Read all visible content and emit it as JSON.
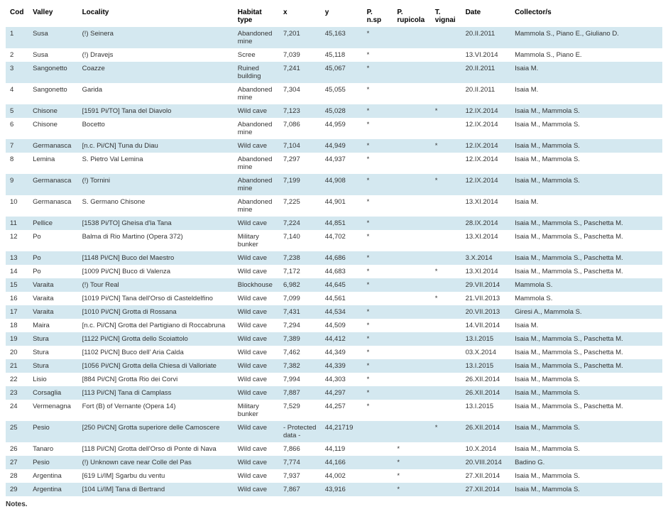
{
  "table": {
    "columns": [
      {
        "key": "cod",
        "label": "Cod",
        "class": "col-cod"
      },
      {
        "key": "valley",
        "label": "Valley",
        "class": "col-valley"
      },
      {
        "key": "locality",
        "label": "Locality",
        "class": "col-locality"
      },
      {
        "key": "habitat",
        "label": "Habitat type",
        "class": "col-habitat"
      },
      {
        "key": "x",
        "label": "x",
        "class": "col-x"
      },
      {
        "key": "y",
        "label": "y",
        "class": "col-y"
      },
      {
        "key": "pnsp",
        "label": "P. n.sp",
        "class": "col-pnsp"
      },
      {
        "key": "prup",
        "label": "P. rupicola",
        "class": "col-prup"
      },
      {
        "key": "tvig",
        "label": "T. vignai",
        "class": "col-tvig"
      },
      {
        "key": "date",
        "label": "Date",
        "class": "col-date"
      },
      {
        "key": "coll",
        "label": "Collector/s",
        "class": "col-coll"
      }
    ],
    "rows": [
      {
        "cod": "1",
        "valley": "Susa",
        "locality": "(!) Seinera",
        "habitat": "Abandoned mine",
        "x": "7,201",
        "y": "45,163",
        "pnsp": "*",
        "prup": "",
        "tvig": "",
        "date": "20.II.2011",
        "coll": "Mammola S., Piano E., Giuliano D."
      },
      {
        "cod": "2",
        "valley": "Susa",
        "locality": "(!) Dravejs",
        "habitat": "Scree",
        "x": "7,039",
        "y": "45,118",
        "pnsp": "*",
        "prup": "",
        "tvig": "",
        "date": "13.VI.2014",
        "coll": "Mammola S., Piano E."
      },
      {
        "cod": "3",
        "valley": "Sangonetto",
        "locality": "Coazze",
        "habitat": "Ruined building",
        "x": "7,241",
        "y": "45,067",
        "pnsp": "*",
        "prup": "",
        "tvig": "",
        "date": "20.II.2011",
        "coll": "Isaia M."
      },
      {
        "cod": "4",
        "valley": "Sangonetto",
        "locality": "Garida",
        "habitat": "Abandoned mine",
        "x": "7,304",
        "y": "45,055",
        "pnsp": "*",
        "prup": "",
        "tvig": "",
        "date": "20.II.2011",
        "coll": "Isaia M."
      },
      {
        "cod": "5",
        "valley": "Chisone",
        "locality": "[1591 Pi/TO] Tana del Diavolo",
        "habitat": "Wild cave",
        "x": "7,123",
        "y": "45,028",
        "pnsp": "*",
        "prup": "",
        "tvig": "*",
        "date": "12.IX.2014",
        "coll": "Isaia M., Mammola S."
      },
      {
        "cod": "6",
        "valley": "Chisone",
        "locality": "Bocetto",
        "habitat": "Abandoned mine",
        "x": "7,086",
        "y": "44,959",
        "pnsp": "*",
        "prup": "",
        "tvig": "",
        "date": "12.IX.2014",
        "coll": "Isaia M., Mammola S."
      },
      {
        "cod": "7",
        "valley": "Germanasca",
        "locality": "[n.c. Pi/CN] Tuna du Diau",
        "habitat": "Wild cave",
        "x": "7,104",
        "y": "44,949",
        "pnsp": "*",
        "prup": "",
        "tvig": "*",
        "date": "12.IX.2014",
        "coll": "Isaia M., Mammola S."
      },
      {
        "cod": "8",
        "valley": "Lemina",
        "locality": "S. Pietro Val Lemina",
        "habitat": "Abandoned mine",
        "x": "7,297",
        "y": "44,937",
        "pnsp": "*",
        "prup": "",
        "tvig": "",
        "date": "12.IX.2014",
        "coll": "Isaia M., Mammola S."
      },
      {
        "cod": "9",
        "valley": "Germanasca",
        "locality": "(!) Tornini",
        "habitat": "Abandoned mine",
        "x": "7,199",
        "y": "44,908",
        "pnsp": "*",
        "prup": "",
        "tvig": "*",
        "date": "12.IX.2014",
        "coll": "Isaia M., Mammola S."
      },
      {
        "cod": "10",
        "valley": "Germanasca",
        "locality": "S. Germano Chisone",
        "habitat": "Abandoned mine",
        "x": "7,225",
        "y": "44,901",
        "pnsp": "*",
        "prup": "",
        "tvig": "",
        "date": "13.XI.2014",
        "coll": "Isaia M."
      },
      {
        "cod": "11",
        "valley": "Pellice",
        "locality": "[1538 Pi/TO] Gheisa d'la Tana",
        "habitat": "Wild cave",
        "x": "7,224",
        "y": "44,851",
        "pnsp": "*",
        "prup": "",
        "tvig": "",
        "date": "28.IX.2014",
        "coll": "Isaia M., Mammola S., Paschetta M."
      },
      {
        "cod": "12",
        "valley": "Po",
        "locality": "Balma di Rio Martino (Opera 372)",
        "habitat": "Military bunker",
        "x": "7,140",
        "y": "44,702",
        "pnsp": "*",
        "prup": "",
        "tvig": "",
        "date": "13.XI.2014",
        "coll": "Isaia M., Mammola S., Paschetta M."
      },
      {
        "cod": "13",
        "valley": "Po",
        "locality": "[1148 Pi/CN] Buco del Maestro",
        "habitat": "Wild cave",
        "x": "7,238",
        "y": "44,686",
        "pnsp": "*",
        "prup": "",
        "tvig": "",
        "date": "3.X.2014",
        "coll": "Isaia M., Mammola S., Paschetta M."
      },
      {
        "cod": "14",
        "valley": "Po",
        "locality": "[1009 Pi/CN] Buco di Valenza",
        "habitat": "Wild cave",
        "x": "7,172",
        "y": "44,683",
        "pnsp": "*",
        "prup": "",
        "tvig": "*",
        "date": "13.XI.2014",
        "coll": "Isaia M., Mammola S., Paschetta M."
      },
      {
        "cod": "15",
        "valley": "Varaita",
        "locality": "(!) Tour Real",
        "habitat": "Blockhouse",
        "x": "6,982",
        "y": "44,645",
        "pnsp": "*",
        "prup": "",
        "tvig": "",
        "date": "29.VII.2014",
        "coll": "Mammola S."
      },
      {
        "cod": "16",
        "valley": "Varaita",
        "locality": "[1019 Pi/CN] Tana dell'Orso di Casteldelfino",
        "habitat": "Wild cave",
        "x": "7,099",
        "y": "44,561",
        "pnsp": "",
        "prup": "",
        "tvig": "*",
        "date": "21.VII.2013",
        "coll": "Mammola S."
      },
      {
        "cod": "17",
        "valley": "Varaita",
        "locality": "[1010 Pi/CN] Grotta di Rossana",
        "habitat": "Wild cave",
        "x": "7,431",
        "y": "44,534",
        "pnsp": "*",
        "prup": "",
        "tvig": "",
        "date": "20.VII.2013",
        "coll": "Giresi A., Mammola S."
      },
      {
        "cod": "18",
        "valley": "Maira",
        "locality": "[n.c. Pi/CN] Grotta del Partigiano di Roccabruna",
        "habitat": "Wild cave",
        "x": "7,294",
        "y": "44,509",
        "pnsp": "*",
        "prup": "",
        "tvig": "",
        "date": "14.VII.2014",
        "coll": "Isaia M."
      },
      {
        "cod": "19",
        "valley": "Stura",
        "locality": "[1122 Pi/CN] Grotta dello Scoiattolo",
        "habitat": "Wild cave",
        "x": "7,389",
        "y": "44,412",
        "pnsp": "*",
        "prup": "",
        "tvig": "",
        "date": "13.I.2015",
        "coll": "Isaia M., Mammola S., Paschetta M."
      },
      {
        "cod": "20",
        "valley": "Stura",
        "locality": "[1102 Pi/CN] Buco dell' Aria Calda",
        "habitat": "Wild cave",
        "x": "7,462",
        "y": "44,349",
        "pnsp": "*",
        "prup": "",
        "tvig": "",
        "date": "03.X.2014",
        "coll": "Isaia M., Mammola S., Paschetta M."
      },
      {
        "cod": "21",
        "valley": "Stura",
        "locality": "[1056 Pi/CN] Grotta della Chiesa di Valloriate",
        "habitat": "Wild cave",
        "x": "7,382",
        "y": "44,339",
        "pnsp": "*",
        "prup": "",
        "tvig": "",
        "date": "13.I.2015",
        "coll": "Isaia M., Mammola S., Paschetta M."
      },
      {
        "cod": "22",
        "valley": "Lisio",
        "locality": "[884 Pi/CN] Grotta Rio dei Corvi",
        "habitat": "Wild cave",
        "x": "7,994",
        "y": "44,303",
        "pnsp": "*",
        "prup": "",
        "tvig": "",
        "date": "26.XII.2014",
        "coll": "Isaia M., Mammola S."
      },
      {
        "cod": "23",
        "valley": "Corsaglia",
        "locality": "[113 Pi/CN] Tana di Camplass",
        "habitat": "Wild cave",
        "x": "7,887",
        "y": "44,297",
        "pnsp": "*",
        "prup": "",
        "tvig": "",
        "date": "26.XII.2014",
        "coll": "Isaia M., Mammola S."
      },
      {
        "cod": "24",
        "valley": "Vermenagna",
        "locality": "Fort (B) of Vernante (Opera 14)",
        "habitat": "Military bunker",
        "x": "7,529",
        "y": "44,257",
        "pnsp": "*",
        "prup": "",
        "tvig": "",
        "date": "13.I.2015",
        "coll": "Isaia M., Mammola S., Paschetta M."
      },
      {
        "cod": "25",
        "valley": "Pesio",
        "locality": "[250 Pi/CN] Grotta superiore delle Camoscere",
        "habitat": "Wild cave",
        "x": "- Protected data -",
        "y": "44,21719",
        "pnsp": "",
        "prup": "",
        "tvig": "*",
        "date": "26.XII.2014",
        "coll": "Isaia M., Mammola S."
      },
      {
        "cod": "26",
        "valley": "Tanaro",
        "locality": "[118 Pi/CN] Grotta dell'Orso di Ponte di Nava",
        "habitat": "Wild cave",
        "x": "7,866",
        "y": "44,119",
        "pnsp": "",
        "prup": "*",
        "tvig": "",
        "date": "10.X.2014",
        "coll": "Isaia M., Mammola S."
      },
      {
        "cod": "27",
        "valley": "Pesio",
        "locality": "(!) Unknown cave near Colle del Pas",
        "habitat": "Wild cave",
        "x": "7,774",
        "y": "44,166",
        "pnsp": "",
        "prup": "*",
        "tvig": "",
        "date": "20.VIII.2014",
        "coll": "Badino G."
      },
      {
        "cod": "28",
        "valley": "Argentina",
        "locality": "[619 Li/IM] Sgarbu du ventu",
        "habitat": "Wild cave",
        "x": "7,937",
        "y": "44,002",
        "pnsp": "",
        "prup": "*",
        "tvig": "",
        "date": "27.XII.2014",
        "coll": "Isaia M., Mammola S."
      },
      {
        "cod": "29",
        "valley": "Argentina",
        "locality": "[104 Li/IM] Tana di Bertrand",
        "habitat": "Wild cave",
        "x": "7,867",
        "y": "43,916",
        "pnsp": "",
        "prup": "*",
        "tvig": "",
        "date": "27.XII.2014",
        "coll": "Isaia M., Mammola S."
      }
    ],
    "row_colors": {
      "alt": "#d4e8f0",
      "norm": "#ffffff"
    }
  },
  "notes_label": "Notes."
}
